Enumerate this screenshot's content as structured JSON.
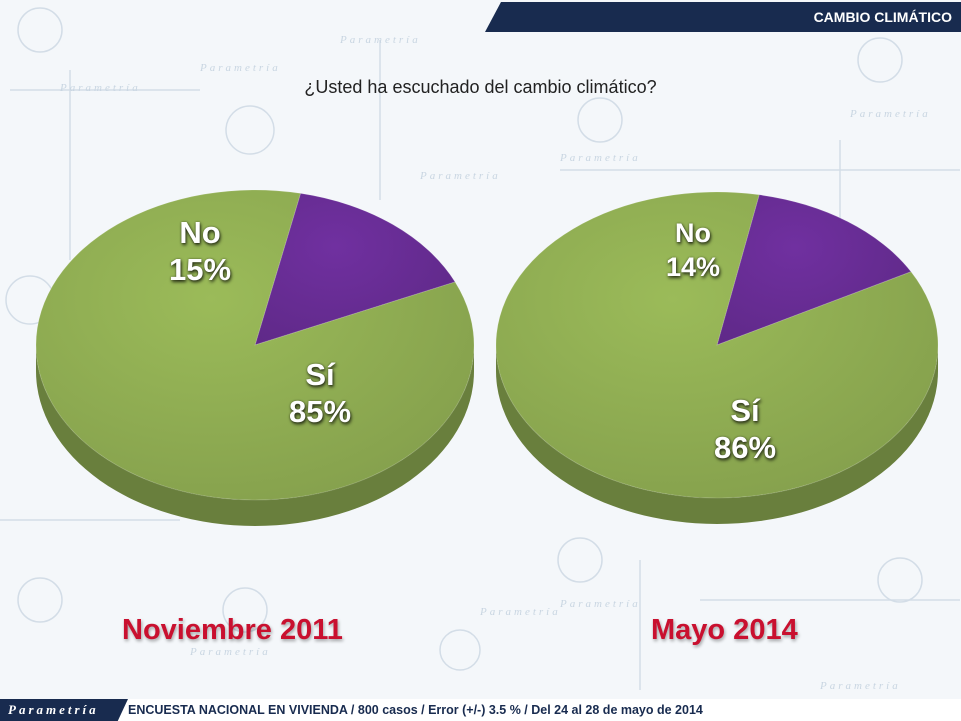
{
  "header": {
    "section_title": "CAMBIO CLIMÁTICO"
  },
  "background": {
    "watermark_text": "Parametría"
  },
  "chart_data": [
    {
      "type": "pie",
      "title": "¿Usted ha escuchado del cambio climático?",
      "period_label": "Noviembre 2011",
      "slices": [
        {
          "label": "No",
          "value": 15,
          "display": "15%",
          "color": "#7030a0"
        },
        {
          "label": "Sí",
          "value": 85,
          "display": "85%",
          "color": "#9bbb59"
        }
      ]
    },
    {
      "type": "pie",
      "title": "¿Usted ha escuchado del cambio climático?",
      "period_label": "Mayo 2014",
      "slices": [
        {
          "label": "No",
          "value": 14,
          "display": "14%",
          "color": "#7030a0"
        },
        {
          "label": "Sí",
          "value": 86,
          "display": "86%",
          "color": "#9bbb59"
        }
      ]
    }
  ],
  "footer": {
    "logo_text": "Parametría",
    "survey_note": "ENCUESTA NACIONAL EN VIVIENDA / 800 casos / Error (+/-) 3.5 % / Del 24 al 28 de mayo de 2014"
  }
}
